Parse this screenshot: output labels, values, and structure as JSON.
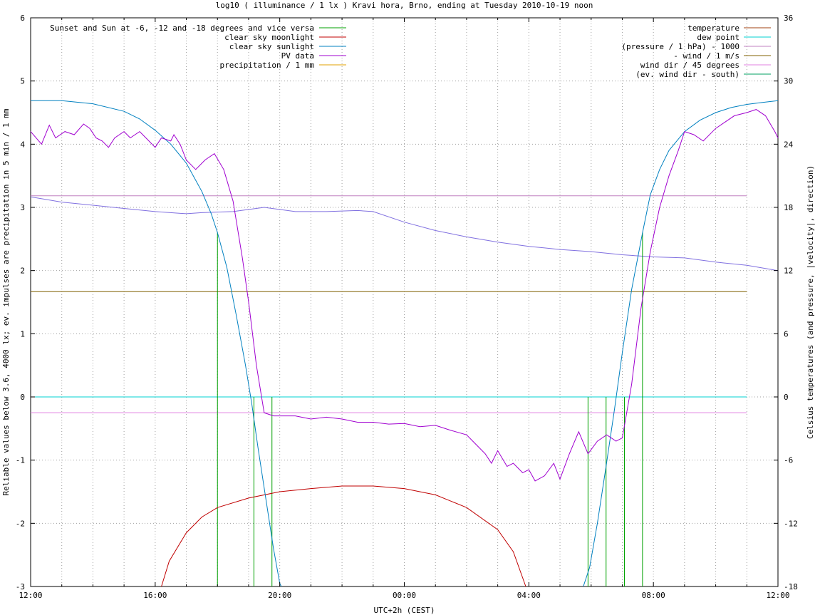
{
  "chart_data": {
    "type": "line",
    "title": "log10 ( illuminance / 1 lx ) Kravi hora, Brno, ending at Tuesday 2010-10-19 noon",
    "xlabel": "UTC+2h (CEST)",
    "ylabel": "Reliable values below 3.6, 4000 lx; ev. impulses are precipitation in 5 min / 1 mm",
    "y2label": "Celsius temperatures (and pressure, |velocity|, direction)",
    "xlim": [
      0,
      24
    ],
    "ylim": [
      -3,
      6
    ],
    "y2lim": [
      -18,
      36
    ],
    "x_ticks": [
      {
        "v": 0,
        "label": "12:00"
      },
      {
        "v": 4,
        "label": "16:00"
      },
      {
        "v": 8,
        "label": "20:00"
      },
      {
        "v": 12,
        "label": "00:00"
      },
      {
        "v": 16,
        "label": "04:00"
      },
      {
        "v": 20,
        "label": "08:00"
      },
      {
        "v": 24,
        "label": "12:00"
      }
    ],
    "y_ticks": [
      {
        "v": -3,
        "label": "-3"
      },
      {
        "v": -2,
        "label": "-2"
      },
      {
        "v": -1,
        "label": "-1"
      },
      {
        "v": 0,
        "label": "0"
      },
      {
        "v": 1,
        "label": "1"
      },
      {
        "v": 2,
        "label": "2"
      },
      {
        "v": 3,
        "label": "3"
      },
      {
        "v": 4,
        "label": "4"
      },
      {
        "v": 5,
        "label": "5"
      },
      {
        "v": 6,
        "label": "6"
      }
    ],
    "y2_ticks": [
      {
        "v": -18,
        "label": "-18"
      },
      {
        "v": -12,
        "label": "-12"
      },
      {
        "v": -6,
        "label": "-6"
      },
      {
        "v": 0,
        "label": "0"
      },
      {
        "v": 6,
        "label": "6"
      },
      {
        "v": 12,
        "label": "12"
      },
      {
        "v": 18,
        "label": "18"
      },
      {
        "v": 24,
        "label": "24"
      },
      {
        "v": 30,
        "label": "30"
      },
      {
        "v": 36,
        "label": "36"
      }
    ],
    "grid": true,
    "legend_left": [
      {
        "key": "sun_lines",
        "label": "Sunset and Sun at -6, -12 and -18 degrees and vice versa",
        "color": "#00a000"
      },
      {
        "key": "moonlight",
        "label": "clear sky moonlight",
        "color": "#c00000"
      },
      {
        "key": "sunlight",
        "label": "clear sky sunlight",
        "color": "#0080c0"
      },
      {
        "key": "pv",
        "label": "PV data",
        "color": "#a000d0"
      },
      {
        "key": "precip",
        "label": "precipitation / 1 mm",
        "color": "#e0a000"
      }
    ],
    "legend_right": [
      {
        "key": "temperature",
        "label": "temperature",
        "color": "#a04010"
      },
      {
        "key": "dew",
        "label": "dew point",
        "color": "#00d0d0"
      },
      {
        "key": "pressure",
        "label": "(pressure / 1 hPa) - 1000",
        "color": "#c080c0"
      },
      {
        "key": "wind",
        "label": "- wind / 1 m/s",
        "color": "#806000"
      },
      {
        "key": "winddir",
        "label": "wind dir / 45 degrees",
        "color": "#e080e0"
      },
      {
        "key": "winddiff",
        "label": "(ev. wind dir - south)",
        "color": "#00a060"
      }
    ],
    "series": {
      "sun_event_lines": [
        {
          "x": 6.0,
          "y_top": 2.6
        },
        {
          "x": 7.17,
          "y_top": 0
        },
        {
          "x": 7.75,
          "y_top": 0
        },
        {
          "x": 17.9,
          "y_top": 0
        },
        {
          "x": 18.48,
          "y_top": 0
        },
        {
          "x": 19.07,
          "y_top": 0
        },
        {
          "x": 19.65,
          "y_top": 2.6
        }
      ],
      "sunlight": [
        [
          0,
          4.69
        ],
        [
          1,
          4.69
        ],
        [
          2,
          4.64
        ],
        [
          3,
          4.52
        ],
        [
          3.5,
          4.4
        ],
        [
          4,
          4.22
        ],
        [
          4.5,
          4.0
        ],
        [
          5,
          3.7
        ],
        [
          5.5,
          3.25
        ],
        [
          5.8,
          2.9
        ],
        [
          6,
          2.6
        ],
        [
          6.3,
          2.05
        ],
        [
          6.6,
          1.3
        ],
        [
          6.9,
          0.5
        ],
        [
          7.1,
          -0.1
        ],
        [
          7.3,
          -0.8
        ],
        [
          7.55,
          -1.6
        ],
        [
          7.8,
          -2.4
        ],
        [
          8.0,
          -2.95
        ],
        [
          8.05,
          -3.0
        ]
      ],
      "sunlight_morning": [
        [
          17.75,
          -3.0
        ],
        [
          17.95,
          -2.7
        ],
        [
          18.2,
          -2.0
        ],
        [
          18.48,
          -1.1
        ],
        [
          18.75,
          -0.2
        ],
        [
          19.0,
          0.7
        ],
        [
          19.3,
          1.7
        ],
        [
          19.65,
          2.6
        ],
        [
          19.9,
          3.2
        ],
        [
          20.2,
          3.6
        ],
        [
          20.5,
          3.9
        ],
        [
          21,
          4.2
        ],
        [
          21.5,
          4.38
        ],
        [
          22,
          4.5
        ],
        [
          22.5,
          4.58
        ],
        [
          23,
          4.63
        ],
        [
          23.5,
          4.66
        ],
        [
          24,
          4.69
        ]
      ],
      "moonlight": [
        [
          4.2,
          -3.0
        ],
        [
          4.45,
          -2.6
        ],
        [
          5.0,
          -2.15
        ],
        [
          5.5,
          -1.9
        ],
        [
          6.0,
          -1.75
        ],
        [
          7.0,
          -1.6
        ],
        [
          8.0,
          -1.5
        ],
        [
          9.0,
          -1.45
        ],
        [
          10.0,
          -1.41
        ],
        [
          11.0,
          -1.41
        ],
        [
          12.0,
          -1.45
        ],
        [
          13.0,
          -1.55
        ],
        [
          14.0,
          -1.75
        ],
        [
          15.0,
          -2.1
        ],
        [
          15.5,
          -2.45
        ],
        [
          15.9,
          -3.0
        ]
      ],
      "pv": [
        [
          0,
          4.2
        ],
        [
          0.35,
          4.0
        ],
        [
          0.6,
          4.3
        ],
        [
          0.8,
          4.1
        ],
        [
          1.1,
          4.2
        ],
        [
          1.4,
          4.15
        ],
        [
          1.7,
          4.32
        ],
        [
          1.9,
          4.25
        ],
        [
          2.1,
          4.1
        ],
        [
          2.3,
          4.05
        ],
        [
          2.5,
          3.95
        ],
        [
          2.7,
          4.1
        ],
        [
          3.0,
          4.2
        ],
        [
          3.2,
          4.1
        ],
        [
          3.5,
          4.2
        ],
        [
          3.8,
          4.05
        ],
        [
          4.0,
          3.95
        ],
        [
          4.2,
          4.1
        ],
        [
          4.5,
          4.05
        ],
        [
          4.6,
          4.15
        ],
        [
          4.8,
          4.0
        ],
        [
          5.0,
          3.75
        ],
        [
          5.3,
          3.6
        ],
        [
          5.6,
          3.75
        ],
        [
          5.9,
          3.85
        ],
        [
          6.2,
          3.6
        ],
        [
          6.5,
          3.1
        ],
        [
          6.8,
          2.2
        ],
        [
          7.0,
          1.5
        ],
        [
          7.25,
          0.5
        ],
        [
          7.5,
          -0.25
        ],
        [
          7.8,
          -0.3
        ],
        [
          8.1,
          -0.3
        ],
        [
          8.5,
          -0.3
        ],
        [
          9.0,
          -0.35
        ],
        [
          9.5,
          -0.32
        ],
        [
          10.0,
          -0.35
        ],
        [
          10.5,
          -0.4
        ],
        [
          11.0,
          -0.4
        ],
        [
          11.5,
          -0.43
        ],
        [
          12.0,
          -0.42
        ],
        [
          12.5,
          -0.47
        ],
        [
          13.0,
          -0.45
        ],
        [
          13.5,
          -0.53
        ],
        [
          14.0,
          -0.6
        ],
        [
          14.3,
          -0.75
        ],
        [
          14.6,
          -0.9
        ],
        [
          14.8,
          -1.05
        ],
        [
          15.0,
          -0.85
        ],
        [
          15.3,
          -1.1
        ],
        [
          15.5,
          -1.05
        ],
        [
          15.8,
          -1.2
        ],
        [
          16.0,
          -1.15
        ],
        [
          16.2,
          -1.33
        ],
        [
          16.5,
          -1.25
        ],
        [
          16.8,
          -1.05
        ],
        [
          17.0,
          -1.3
        ],
        [
          17.3,
          -0.9
        ],
        [
          17.6,
          -0.55
        ],
        [
          17.9,
          -0.9
        ],
        [
          18.2,
          -0.7
        ],
        [
          18.5,
          -0.6
        ],
        [
          18.8,
          -0.7
        ],
        [
          19.0,
          -0.65
        ],
        [
          19.3,
          0.2
        ],
        [
          19.6,
          1.4
        ],
        [
          19.9,
          2.3
        ],
        [
          20.2,
          3.0
        ],
        [
          20.5,
          3.5
        ],
        [
          20.8,
          3.9
        ],
        [
          21.0,
          4.2
        ],
        [
          21.3,
          4.15
        ],
        [
          21.6,
          4.05
        ],
        [
          22.0,
          4.25
        ],
        [
          22.3,
          4.35
        ],
        [
          22.6,
          4.45
        ],
        [
          23.0,
          4.5
        ],
        [
          23.3,
          4.55
        ],
        [
          23.6,
          4.45
        ],
        [
          23.9,
          4.2
        ],
        [
          24,
          4.1
        ]
      ],
      "temperature": [
        [
          0,
          19.0
        ],
        [
          1,
          18.5
        ],
        [
          2,
          18.2
        ],
        [
          3,
          17.9
        ],
        [
          4,
          17.6
        ],
        [
          5,
          17.4
        ],
        [
          5.5,
          17.5
        ],
        [
          6.5,
          17.6
        ],
        [
          7.5,
          18.0
        ],
        [
          8.5,
          17.6
        ],
        [
          9.5,
          17.6
        ],
        [
          10.5,
          17.7
        ],
        [
          11.0,
          17.6
        ],
        [
          12,
          16.6
        ],
        [
          13,
          15.8
        ],
        [
          14,
          15.2
        ],
        [
          15,
          14.7
        ],
        [
          16,
          14.3
        ],
        [
          17,
          14.0
        ],
        [
          18,
          13.8
        ],
        [
          19,
          13.5
        ],
        [
          20,
          13.3
        ],
        [
          21,
          13.2
        ],
        [
          22,
          12.8
        ],
        [
          23,
          12.5
        ],
        [
          24,
          12.0
        ]
      ],
      "pressure_const": 19.1,
      "wind_const": 10.0,
      "dew_const": 0,
      "winddir_const": -1.5
    }
  }
}
